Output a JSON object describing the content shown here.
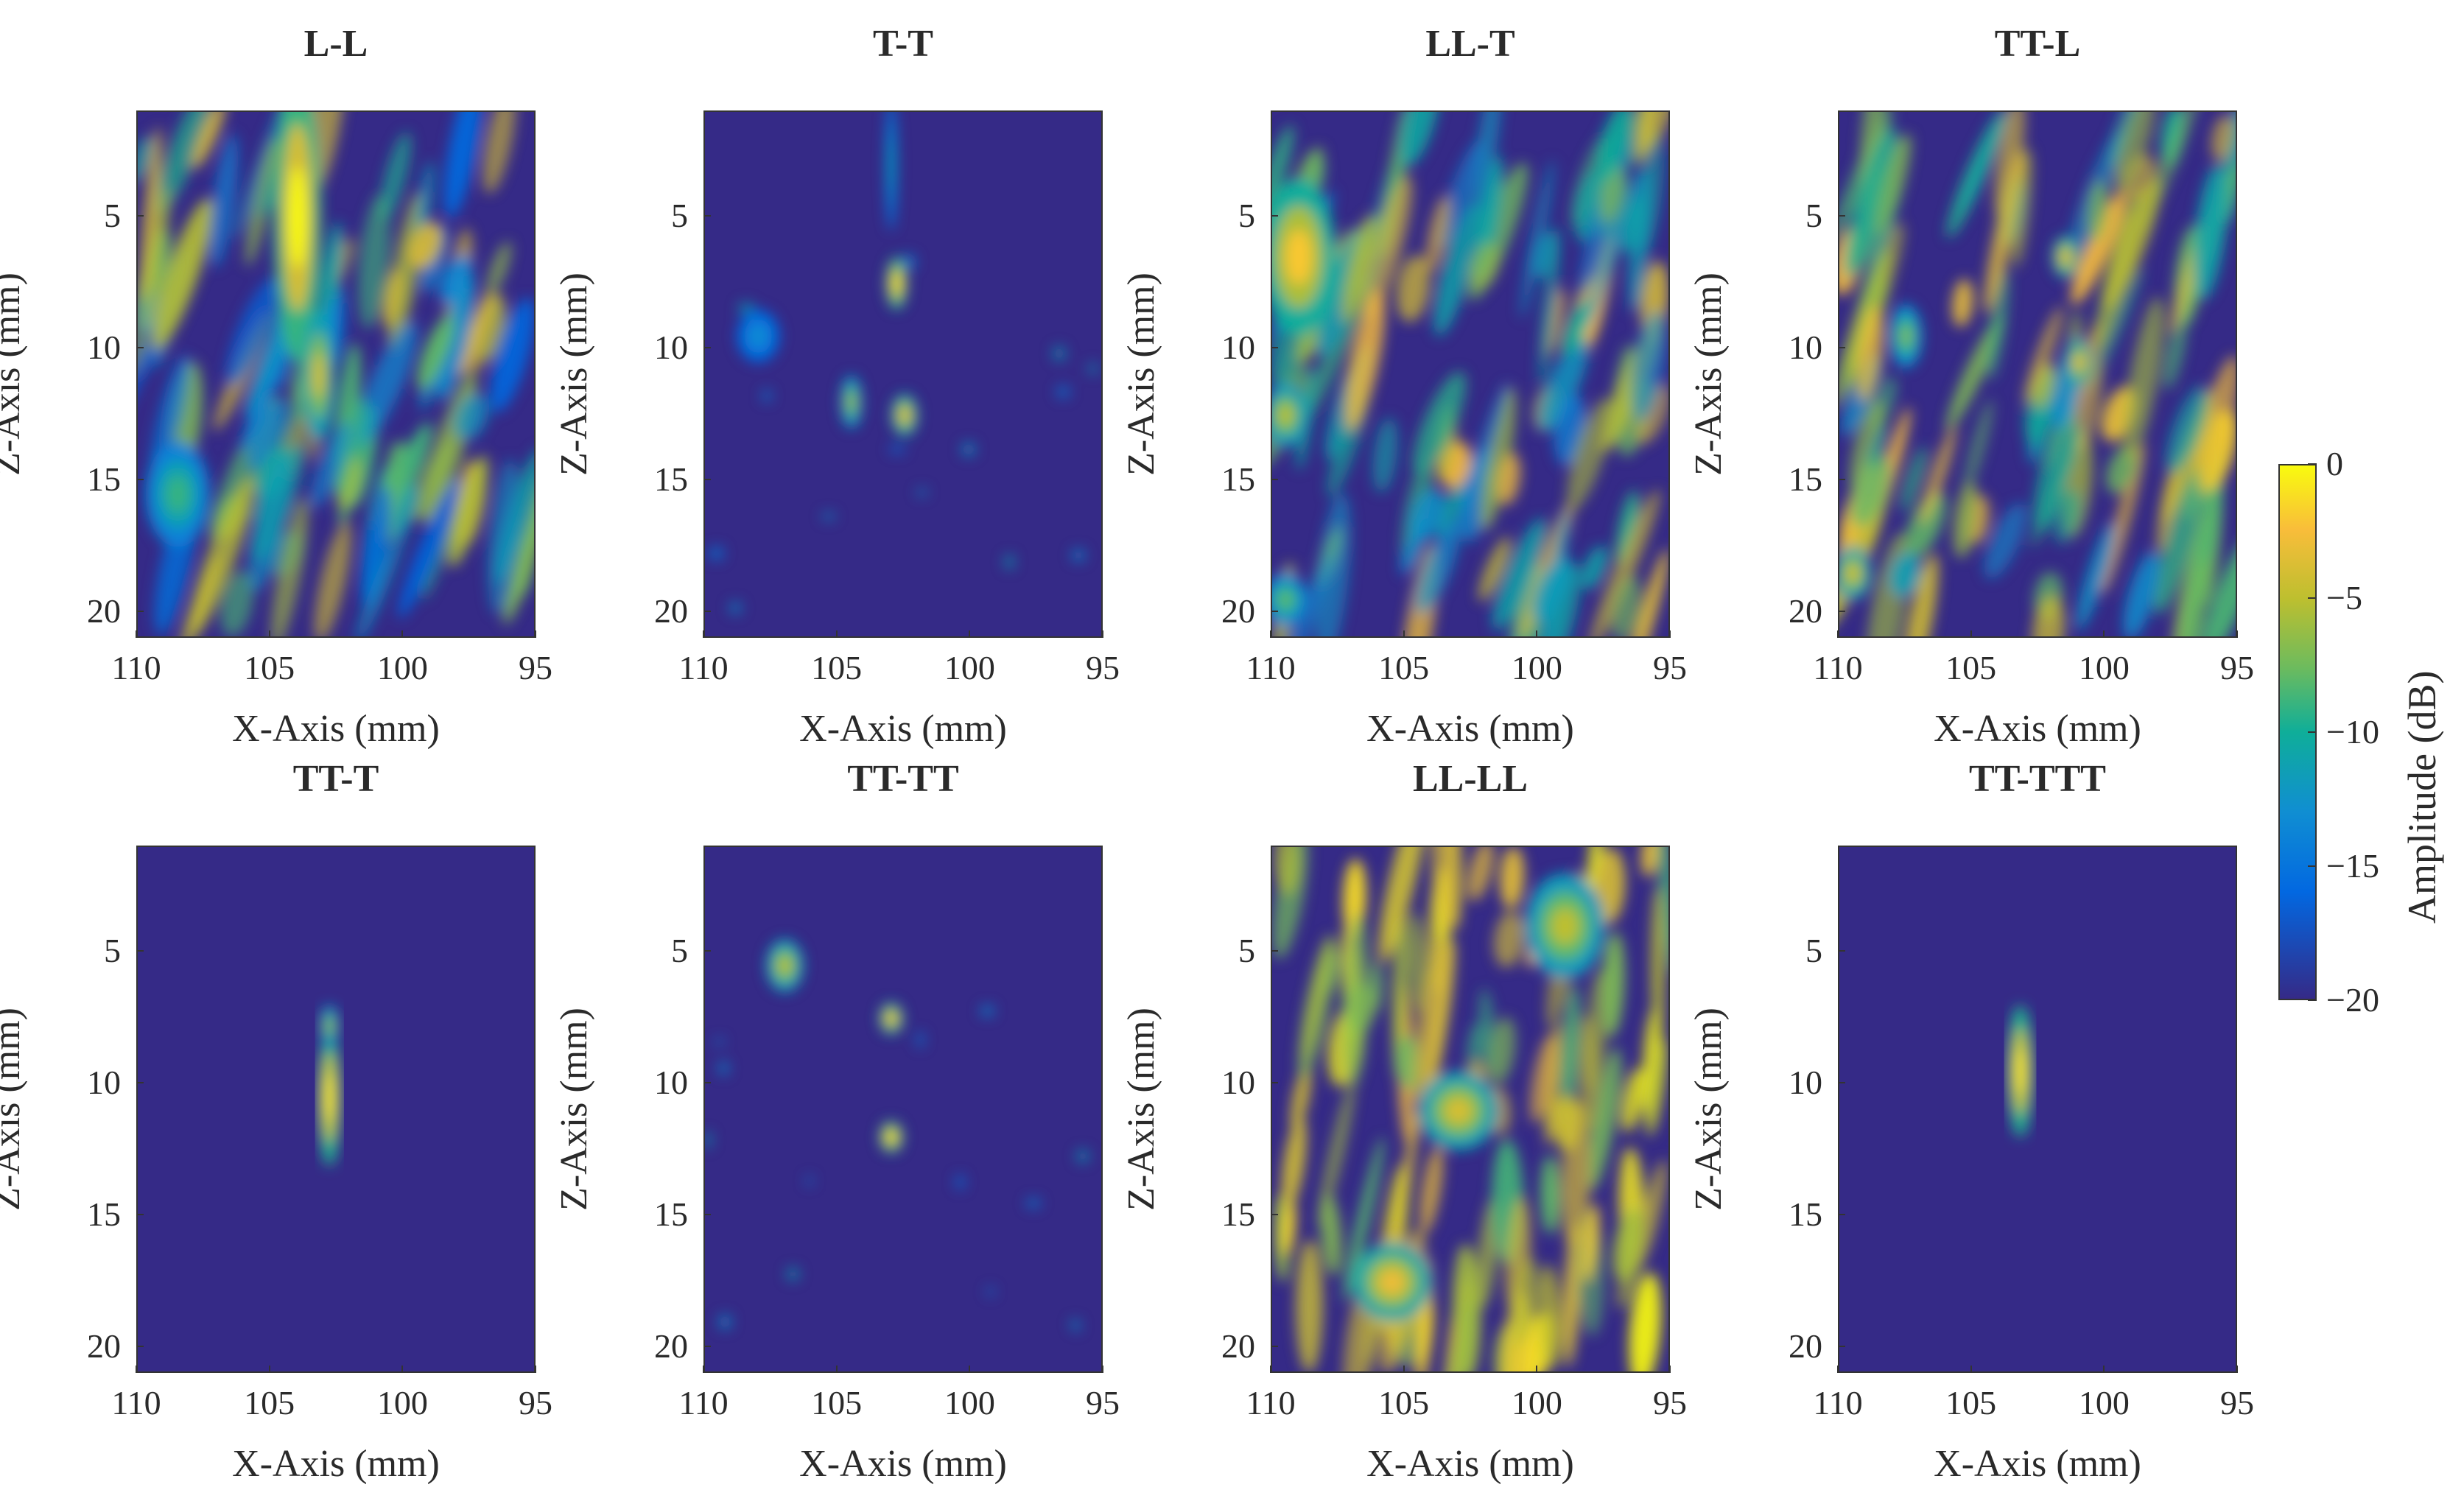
{
  "chart_data": {
    "type": "heatmap",
    "colormap": "parula",
    "colorbar": {
      "label": "Amplitude (dB)",
      "range": [
        -20,
        0
      ],
      "ticks": [
        "0",
        "−5",
        "−10",
        "−15",
        "−20"
      ],
      "tick_values": [
        0,
        -5,
        -10,
        -15,
        -20
      ]
    },
    "shared_axes": {
      "xlabel": "X-Axis (mm)",
      "ylabel": "Z-Axis (mm)",
      "xlim": [
        110,
        95
      ],
      "ylim": [
        1,
        21
      ],
      "xticks": [
        "110",
        "105",
        "100",
        "95"
      ],
      "xtick_values": [
        110,
        105,
        100,
        95
      ],
      "yticks": [
        "5",
        "10",
        "15",
        "20"
      ],
      "ytick_values": [
        5,
        10,
        15,
        20
      ]
    },
    "panels": [
      {
        "title": "L-L",
        "pattern": "texture",
        "seed": 11,
        "level": 0.18,
        "blobs": [
          {
            "x": 104.0,
            "z": 5.0,
            "sx": 0.9,
            "sz": 5.5,
            "a": 1.0
          },
          {
            "x": 103.2,
            "z": 11.0,
            "sx": 0.6,
            "sz": 2.5,
            "a": 0.8
          },
          {
            "x": 108.5,
            "z": 15.5,
            "sx": 1.2,
            "sz": 2.0,
            "a": 0.55
          }
        ]
      },
      {
        "title": "T-T",
        "pattern": "sparse",
        "seed": 23,
        "level": 0.0,
        "blobs": [
          {
            "x": 102.8,
            "z": 7.5,
            "sx": 0.4,
            "sz": 1.0,
            "a": 0.95
          },
          {
            "x": 102.5,
            "z": 12.5,
            "sx": 0.5,
            "sz": 0.8,
            "a": 0.85
          },
          {
            "x": 104.5,
            "z": 12.0,
            "sx": 0.4,
            "sz": 1.0,
            "a": 0.7
          },
          {
            "x": 108.0,
            "z": 9.5,
            "sx": 0.8,
            "sz": 1.0,
            "a": 0.35
          },
          {
            "x": 103.0,
            "z": 3.0,
            "sx": 0.2,
            "sz": 2.5,
            "a": 0.45
          }
        ]
      },
      {
        "title": "LL-T",
        "pattern": "texture",
        "seed": 37,
        "level": 0.3,
        "blobs": [
          {
            "x": 109.0,
            "z": 6.5,
            "sx": 1.4,
            "sz": 3.0,
            "a": 0.9
          },
          {
            "x": 109.5,
            "z": 12.5,
            "sx": 0.8,
            "sz": 1.2,
            "a": 0.75
          },
          {
            "x": 109.5,
            "z": 19.5,
            "sx": 0.8,
            "sz": 1.0,
            "a": 0.6
          }
        ]
      },
      {
        "title": "TT-L",
        "pattern": "texture",
        "seed": 51,
        "level": 0.35,
        "blobs": [
          {
            "x": 101.5,
            "z": 6.5,
            "sx": 0.5,
            "sz": 0.8,
            "a": 0.85
          },
          {
            "x": 101.0,
            "z": 10.5,
            "sx": 0.5,
            "sz": 0.9,
            "a": 0.85
          },
          {
            "x": 109.5,
            "z": 18.5,
            "sx": 0.7,
            "sz": 1.0,
            "a": 0.8
          },
          {
            "x": 107.5,
            "z": 9.5,
            "sx": 0.6,
            "sz": 1.2,
            "a": 0.65
          }
        ]
      },
      {
        "title": "TT-T",
        "pattern": "none",
        "seed": 0,
        "level": 0.0,
        "blobs": [
          {
            "x": 102.8,
            "z": 10.5,
            "sx": 0.45,
            "sz": 2.6,
            "a": 0.95
          },
          {
            "x": 102.8,
            "z": 7.8,
            "sx": 0.35,
            "sz": 0.8,
            "a": 0.7
          }
        ]
      },
      {
        "title": "TT-TT",
        "pattern": "sparse",
        "seed": 67,
        "level": 0.0,
        "blobs": [
          {
            "x": 103.0,
            "z": 7.5,
            "sx": 0.45,
            "sz": 0.6,
            "a": 0.9
          },
          {
            "x": 103.0,
            "z": 12.0,
            "sx": 0.45,
            "sz": 0.6,
            "a": 0.95
          },
          {
            "x": 107.0,
            "z": 5.5,
            "sx": 0.7,
            "sz": 1.0,
            "a": 0.75
          }
        ]
      },
      {
        "title": "LL-LL",
        "pattern": "texture",
        "seed": 79,
        "level": 0.55,
        "blobs": [
          {
            "x": 105.5,
            "z": 17.5,
            "sx": 1.5,
            "sz": 1.5,
            "a": 0.85
          },
          {
            "x": 103.0,
            "z": 11.0,
            "sx": 1.5,
            "sz": 1.5,
            "a": 0.8
          },
          {
            "x": 99.0,
            "z": 4.0,
            "sx": 1.5,
            "sz": 2.0,
            "a": 0.75
          }
        ]
      },
      {
        "title": "TT-TTT",
        "pattern": "none",
        "seed": 0,
        "level": 0.0,
        "blobs": [
          {
            "x": 103.2,
            "z": 9.5,
            "sx": 0.5,
            "sz": 2.5,
            "a": 0.95
          }
        ]
      }
    ]
  }
}
